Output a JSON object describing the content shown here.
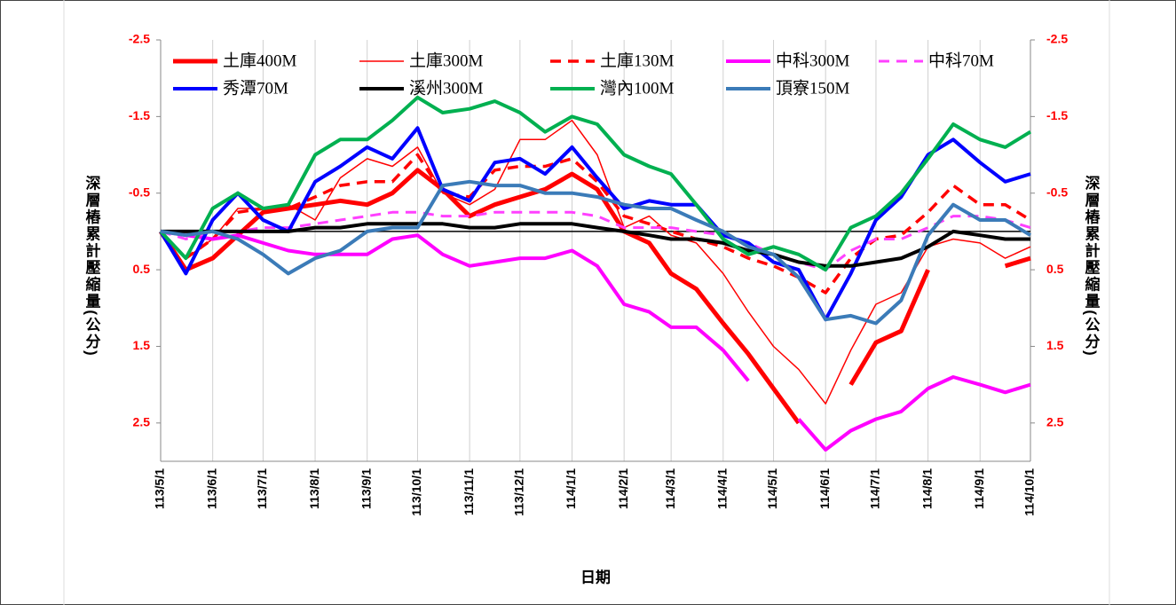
{
  "chart_data": {
    "type": "line",
    "x_label": "日期",
    "y_label": "深層樁累計壓縮量(公分)",
    "y2_label": "深層樁累計壓縮量(公分)",
    "x": [
      "113/5/1",
      "113/5/16",
      "113/6/1",
      "113/6/16",
      "113/7/1",
      "113/7/16",
      "113/8/1",
      "113/8/16",
      "113/9/1",
      "113/9/16",
      "113/10/1",
      "113/10/16",
      "113/11/1",
      "113/11/16",
      "113/12/1",
      "113/12/16",
      "114/1/1",
      "114/1/16",
      "114/2/1",
      "114/2/16",
      "114/3/1",
      "114/3/16",
      "114/4/1",
      "114/4/16",
      "114/5/1",
      "114/5/16",
      "114/6/1",
      "114/6/16",
      "114/7/1",
      "114/7/16",
      "114/8/1",
      "114/8/16",
      "114/9/1",
      "114/9/16",
      "114/10/1"
    ],
    "xlim": [
      "113/5/1",
      "114/10/1"
    ],
    "xticks": [
      "113/5/1",
      "113/6/1",
      "113/7/1",
      "113/8/1",
      "113/9/1",
      "113/10/1",
      "113/11/1",
      "113/12/1",
      "114/1/1",
      "114/2/1",
      "114/3/1",
      "114/4/1",
      "114/5/1",
      "114/6/1",
      "114/7/1",
      "114/8/1",
      "114/9/1",
      "114/10/1"
    ],
    "ylim": [
      -2.5,
      3.0
    ],
    "yticks": [
      -2.5,
      -1.5,
      -0.5,
      0.5,
      1.5,
      2.5
    ],
    "y2lim": [
      -2.5,
      3.0
    ],
    "y2ticks": [
      -2.5,
      -1.5,
      -0.5,
      0.5,
      1.5,
      2.5
    ],
    "y_reversed": true,
    "tick_label_color": "#ff0000",
    "grid": true,
    "legend": "top-left",
    "series": [
      {
        "name": "土庫400M",
        "color": "#ff0000",
        "width": 5,
        "dash": false,
        "values": [
          0.0,
          0.5,
          0.35,
          0.05,
          -0.25,
          -0.3,
          -0.35,
          -0.4,
          -0.35,
          -0.5,
          -0.8,
          -0.55,
          -0.2,
          -0.35,
          -0.45,
          -0.55,
          -0.75,
          -0.55,
          0.0,
          0.15,
          0.55,
          0.75,
          1.2,
          1.6,
          2.05,
          2.5,
          null,
          2.0,
          1.45,
          1.3,
          0.5,
          null,
          null,
          0.45,
          0.35
        ]
      },
      {
        "name": "土庫300M",
        "color": "#ff0000",
        "width": 1.5,
        "dash": false,
        "values": [
          0.0,
          0.35,
          0.1,
          -0.3,
          -0.3,
          -0.35,
          -0.15,
          -0.7,
          -0.95,
          -0.85,
          -1.1,
          -0.5,
          -0.35,
          -0.55,
          -1.2,
          -1.2,
          -1.45,
          -1.0,
          -0.05,
          -0.2,
          0.05,
          0.15,
          0.55,
          1.05,
          1.5,
          1.8,
          2.25,
          1.55,
          0.95,
          0.8,
          0.2,
          0.1,
          0.15,
          0.35,
          0.2
        ]
      },
      {
        "name": "土庫130M",
        "color": "#ff0000",
        "width": 3.5,
        "dash": true,
        "values": [
          0.0,
          0.35,
          0.1,
          -0.25,
          -0.3,
          -0.3,
          -0.45,
          -0.6,
          -0.65,
          -0.65,
          -1.0,
          -0.5,
          -0.45,
          -0.8,
          -0.85,
          -0.85,
          -0.95,
          -0.65,
          -0.2,
          -0.1,
          0.0,
          0.1,
          0.2,
          0.35,
          0.45,
          0.6,
          0.8,
          0.35,
          0.1,
          0.05,
          -0.25,
          -0.6,
          -0.35,
          -0.35,
          -0.15
        ]
      },
      {
        "name": "中科300M",
        "color": "#ff00ff",
        "width": 4,
        "dash": false,
        "values": [
          0.0,
          0.05,
          0.1,
          0.05,
          0.15,
          0.25,
          0.3,
          0.3,
          0.3,
          0.1,
          0.05,
          0.3,
          0.45,
          0.4,
          0.35,
          0.35,
          0.25,
          0.45,
          0.95,
          1.05,
          1.25,
          1.25,
          1.55,
          1.95,
          null,
          2.45,
          2.85,
          2.6,
          2.45,
          2.35,
          2.05,
          1.9,
          2.0,
          2.1,
          2.0
        ]
      },
      {
        "name": "中科70M",
        "color": "#ff40ff",
        "width": 3,
        "dash": true,
        "values": [
          0.0,
          0.1,
          0.0,
          0.0,
          -0.05,
          -0.05,
          -0.1,
          -0.15,
          -0.2,
          -0.25,
          -0.25,
          -0.2,
          -0.2,
          -0.25,
          -0.25,
          -0.25,
          -0.25,
          -0.2,
          -0.05,
          -0.05,
          -0.05,
          0.0,
          0.05,
          0.15,
          0.3,
          0.4,
          0.5,
          0.25,
          0.1,
          0.1,
          -0.05,
          -0.2,
          -0.2,
          -0.15,
          -0.05
        ]
      },
      {
        "name": "秀潭70M",
        "color": "#0000ff",
        "width": 4,
        "dash": false,
        "values": [
          0.0,
          0.55,
          -0.15,
          -0.5,
          -0.15,
          0.0,
          -0.65,
          -0.85,
          -1.1,
          -0.95,
          -1.35,
          -0.55,
          -0.4,
          -0.9,
          -0.95,
          -0.75,
          -1.1,
          -0.7,
          -0.3,
          -0.4,
          -0.35,
          -0.35,
          0.05,
          0.15,
          0.4,
          0.5,
          1.15,
          0.55,
          -0.15,
          -0.45,
          -1.0,
          -1.2,
          -0.9,
          -0.65,
          -0.75
        ]
      },
      {
        "name": "溪州300M",
        "color": "#000000",
        "width": 4,
        "dash": false,
        "values": [
          0.0,
          0.0,
          0.0,
          0.0,
          0.0,
          0.0,
          -0.05,
          -0.05,
          -0.1,
          -0.1,
          -0.1,
          -0.1,
          -0.05,
          -0.05,
          -0.1,
          -0.1,
          -0.1,
          -0.05,
          0.0,
          0.05,
          0.1,
          0.1,
          0.15,
          0.25,
          0.3,
          0.4,
          0.45,
          0.45,
          0.4,
          0.35,
          0.2,
          0.0,
          0.05,
          0.1,
          0.1
        ]
      },
      {
        "name": "灣內100M",
        "color": "#00b050",
        "width": 4,
        "dash": false,
        "values": [
          0.0,
          0.35,
          -0.3,
          -0.5,
          -0.3,
          -0.35,
          -1.0,
          -1.2,
          -1.2,
          -1.45,
          -1.75,
          -1.55,
          -1.6,
          -1.7,
          -1.55,
          -1.3,
          -1.5,
          -1.4,
          -1.0,
          -0.85,
          -0.75,
          -0.35,
          0.1,
          0.3,
          0.2,
          0.3,
          0.5,
          -0.05,
          -0.2,
          -0.5,
          -0.95,
          -1.4,
          -1.2,
          -1.1,
          -1.3
        ]
      },
      {
        "name": "頂寮150M",
        "color": "#3b7bb8",
        "width": 4,
        "dash": false,
        "values": [
          0.0,
          0.05,
          0.0,
          0.1,
          0.3,
          0.55,
          0.35,
          0.25,
          0.0,
          -0.05,
          -0.05,
          -0.6,
          -0.65,
          -0.6,
          -0.6,
          -0.5,
          -0.5,
          -0.45,
          -0.35,
          -0.3,
          -0.3,
          -0.15,
          0.0,
          0.2,
          0.3,
          0.6,
          1.15,
          1.1,
          1.2,
          0.9,
          0.05,
          -0.35,
          -0.15,
          -0.15,
          0.05
        ]
      }
    ]
  }
}
